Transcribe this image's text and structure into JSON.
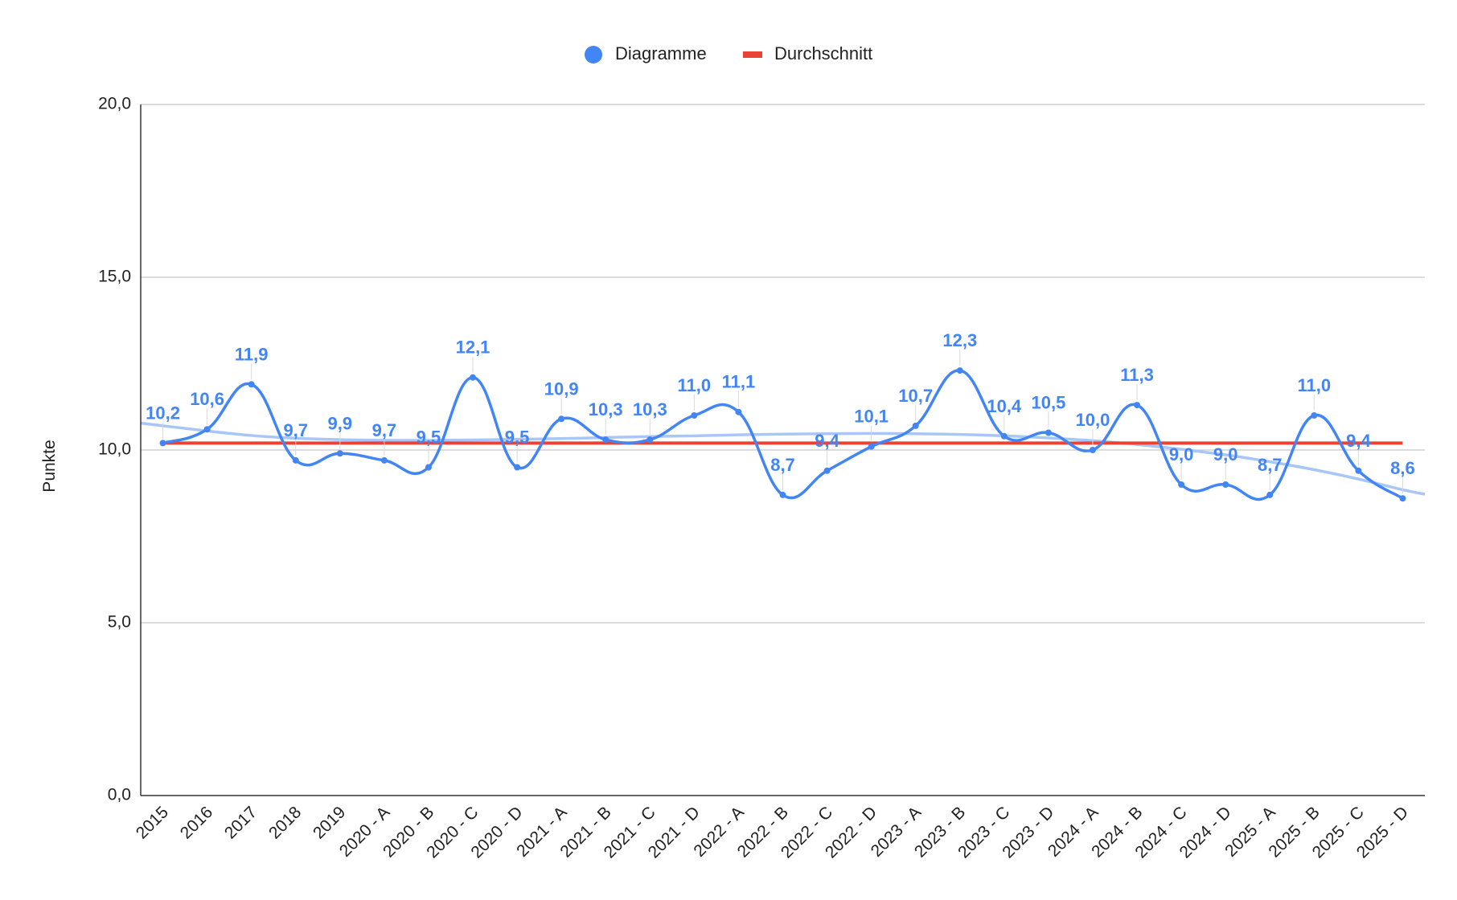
{
  "chart_data": {
    "type": "line",
    "categories": [
      "2015",
      "2016",
      "2017",
      "2018",
      "2019",
      "2020 - A",
      "2020 - B",
      "2020 - C",
      "2020 - D",
      "2021 - A",
      "2021 - B",
      "2021 - C",
      "2021 - D",
      "2022 - A",
      "2022 - B",
      "2022 - C",
      "2022 - D",
      "2023 - A",
      "2023 - B",
      "2023 - C",
      "2023 - D",
      "2024 - A",
      "2024 - B",
      "2024 - C",
      "2024 - D",
      "2025 - A",
      "2025 - B",
      "2025 - C",
      "2025 - D"
    ],
    "series": [
      {
        "name": "Diagramme",
        "color": "#4285f4",
        "values": [
          10.2,
          10.6,
          11.9,
          9.7,
          9.9,
          9.7,
          9.5,
          12.1,
          9.5,
          10.9,
          10.3,
          10.3,
          11.0,
          11.1,
          8.7,
          9.4,
          10.1,
          10.7,
          12.3,
          10.4,
          10.5,
          10.0,
          11.3,
          9.0,
          9.0,
          8.7,
          11.0,
          9.4,
          8.6
        ],
        "labels": [
          "10,2",
          "10,6",
          "11,9",
          "9,7",
          "9,9",
          "9,7",
          "9,5",
          "12,1",
          "9,5",
          "10,9",
          "10,3",
          "10,3",
          "11,0",
          "11,1",
          "8,7",
          "9,4",
          "10,1",
          "10,7",
          "12,3",
          "10,4",
          "10,5",
          "10,0",
          "11,3",
          "9,0",
          "9,0",
          "8,7",
          "11,0",
          "9,4",
          "8,6"
        ]
      },
      {
        "name": "Durchschnitt",
        "color": "#ea4335",
        "values": [
          10.2,
          10.2,
          10.2,
          10.2,
          10.2,
          10.2,
          10.2,
          10.2,
          10.2,
          10.2,
          10.2,
          10.2,
          10.2,
          10.2,
          10.2,
          10.2,
          10.2,
          10.2,
          10.2,
          10.2,
          10.2,
          10.2,
          10.2,
          10.2,
          10.2,
          10.2,
          10.2,
          10.2,
          10.2
        ]
      }
    ],
    "trendline": {
      "color": "#a8c6f8",
      "type": "polynomial",
      "values": [
        10.7,
        10.55,
        10.42,
        10.34,
        10.3,
        10.28,
        10.28,
        10.29,
        10.31,
        10.33,
        10.36,
        10.39,
        10.41,
        10.44,
        10.46,
        10.47,
        10.48,
        10.47,
        10.45,
        10.41,
        10.35,
        10.27,
        10.16,
        10.02,
        9.86,
        9.66,
        9.43,
        9.16,
        8.85
      ]
    },
    "yticks": [
      "0,0",
      "5,0",
      "10,0",
      "15,0",
      "20,0"
    ],
    "ylim": [
      0,
      20
    ],
    "ylabel": "Punkte",
    "xlabel": "",
    "grid": true,
    "legend_position": "top"
  }
}
